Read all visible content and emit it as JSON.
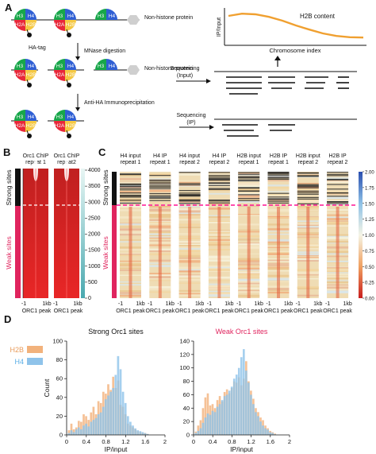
{
  "panelA": {
    "letter": "A",
    "labels": {
      "h3": "H3",
      "h4": "H4",
      "h2a": "H2A",
      "h2b": "H2B",
      "non_histone": "Non-histone protein",
      "ha_tag": "HA-tag",
      "mnase": "MNase digestion",
      "anti_ha": "Anti-HA Immunoprecipitation",
      "seq_input_1": "Sequencing",
      "seq_input_2": "(Input)",
      "seq_ip_1": "Sequencing",
      "seq_ip_2": "(IP)"
    },
    "inset": {
      "title": "H2B content",
      "ylabel": "IP/Input",
      "xlabel": "Chromosome index",
      "curve_color": "#f0a030",
      "chart_data": {
        "type": "line",
        "x": [
          0,
          1,
          2,
          3,
          4,
          5,
          6,
          7,
          8,
          9,
          10
        ],
        "values": [
          0.85,
          0.92,
          0.9,
          0.82,
          0.7,
          0.55,
          0.42,
          0.3,
          0.22,
          0.18,
          0.17
        ]
      }
    }
  },
  "panelB": {
    "letter": "B",
    "col1": [
      "Orc1 ChIP",
      "repeat 1"
    ],
    "col2": [
      "Orc1 ChIP",
      "repeat2"
    ],
    "yticks": [
      "4000",
      "3500",
      "3000",
      "2500",
      "2000",
      "1500",
      "1000",
      "500",
      "0"
    ],
    "xtick_left": "-1",
    "xtick_right": "1kb",
    "xaxis": "ORC1 peak",
    "strong": "Strong sites",
    "weak": "Weak sites"
  },
  "panelC": {
    "letter": "C",
    "columns": [
      [
        "H4 input",
        "repeat 1"
      ],
      [
        "H4 IP",
        "repeat 1"
      ],
      [
        "H4 input",
        "repeat 2"
      ],
      [
        "H4 IP",
        "repeat 2"
      ],
      [
        "H2B input",
        "repeat 1"
      ],
      [
        "H2B IP",
        "repeat 1"
      ],
      [
        "H2B input",
        "repeat 2"
      ],
      [
        "H2B IP",
        "repeat 2"
      ]
    ],
    "xtick_left": "-1",
    "xtick_right": "1kb",
    "xaxis": "ORC1 peak",
    "strong": "Strong sites",
    "weak": "Weak sites",
    "colorbar_ticks": [
      "2.00",
      "1.75",
      "1.50",
      "1.25",
      "1.00",
      "0.75",
      "0.50",
      "0.25",
      "0.00"
    ]
  },
  "panelD": {
    "letter": "D",
    "legend": [
      {
        "name": "H2B",
        "color": "#f2b27c"
      },
      {
        "name": "H4",
        "color": "#8fc3ea"
      }
    ],
    "chart_data": [
      {
        "type": "bar",
        "title": "Strong Orc1 sites",
        "title_color": "#111111",
        "xlabel": "IP/input",
        "ylabel": "Count",
        "xlim": [
          0,
          2
        ],
        "ylim": [
          0,
          100
        ],
        "xticks": [
          "0",
          "0.4",
          "0.8",
          "1.2",
          "1.6",
          "2"
        ],
        "yticks": [
          "0",
          "20",
          "40",
          "60",
          "80",
          "100"
        ],
        "bin_width": 0.05,
        "x": [
          0.05,
          0.1,
          0.15,
          0.2,
          0.25,
          0.3,
          0.35,
          0.4,
          0.45,
          0.5,
          0.55,
          0.6,
          0.65,
          0.7,
          0.75,
          0.8,
          0.85,
          0.9,
          0.95,
          1.0,
          1.05,
          1.1,
          1.15,
          1.2,
          1.25,
          1.3,
          1.35,
          1.4,
          1.45,
          1.5,
          1.55,
          1.6,
          1.65
        ],
        "series": [
          {
            "name": "H2B",
            "values": [
              5,
              12,
              6,
              8,
              15,
              14,
              22,
              20,
              16,
              24,
              30,
              22,
              36,
              34,
              46,
              44,
              54,
              48,
              62,
              50,
              58,
              32,
              30,
              22,
              12,
              10,
              8,
              6,
              4,
              3,
              2,
              2,
              1
            ]
          },
          {
            "name": "H4",
            "values": [
              2,
              5,
              3,
              6,
              8,
              6,
              10,
              12,
              9,
              14,
              16,
              18,
              22,
              24,
              30,
              38,
              42,
              46,
              50,
              64,
              84,
              70,
              46,
              34,
              20,
              14,
              10,
              7,
              5,
              4,
              3,
              2,
              1
            ]
          }
        ]
      },
      {
        "type": "bar",
        "title": "Weak Orc1 sites",
        "title_color": "#e0245e",
        "xlabel": "IP/input",
        "ylabel": "",
        "xlim": [
          0,
          2
        ],
        "ylim": [
          0,
          140
        ],
        "xticks": [
          "0",
          "0.4",
          "0.8",
          "1.2",
          "1.6",
          "2"
        ],
        "yticks": [
          "0",
          "20",
          "40",
          "60",
          "80",
          "100",
          "120",
          "140"
        ],
        "bin_width": 0.05,
        "x": [
          0.05,
          0.1,
          0.15,
          0.2,
          0.25,
          0.3,
          0.35,
          0.4,
          0.45,
          0.5,
          0.55,
          0.6,
          0.65,
          0.7,
          0.75,
          0.8,
          0.85,
          0.9,
          0.95,
          1.0,
          1.05,
          1.1,
          1.15,
          1.2,
          1.25,
          1.3,
          1.35,
          1.4,
          1.45,
          1.5,
          1.55,
          1.6,
          1.65,
          1.7
        ],
        "series": [
          {
            "name": "H2B",
            "values": [
              5,
              14,
              22,
              40,
              56,
              62,
              44,
              46,
              40,
              52,
              58,
              50,
              64,
              68,
              62,
              70,
              80,
              78,
              86,
              74,
              84,
              110,
              80,
              66,
              54,
              40,
              34,
              26,
              22,
              14,
              10,
              6,
              4,
              2
            ]
          },
          {
            "name": "H4",
            "values": [
              3,
              6,
              10,
              18,
              26,
              32,
              30,
              36,
              34,
              42,
              46,
              52,
              58,
              60,
              66,
              72,
              84,
              90,
              100,
              116,
              128,
              96,
              78,
              60,
              46,
              34,
              28,
              20,
              14,
              10,
              8,
              4,
              3,
              1
            ]
          }
        ]
      }
    ]
  }
}
